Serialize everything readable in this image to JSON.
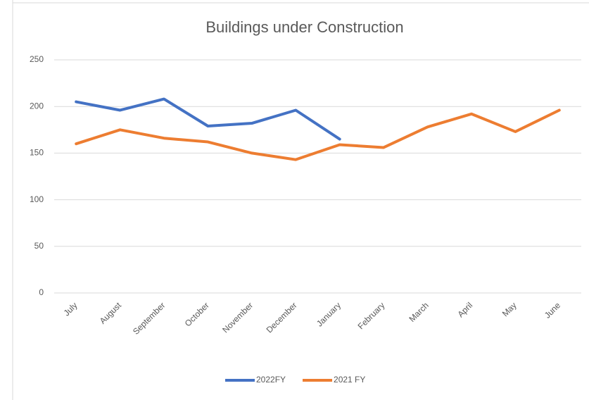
{
  "chart_data": {
    "type": "line",
    "title": "Buildings under Construction",
    "categories": [
      "July",
      "August",
      "September",
      "October",
      "November",
      "December",
      "January",
      "February",
      "March",
      "April",
      "May",
      "June"
    ],
    "series": [
      {
        "name": "2022FY",
        "color": "#4472c4",
        "values": [
          205,
          196,
          208,
          179,
          182,
          196,
          165,
          null,
          null,
          null,
          null,
          null
        ]
      },
      {
        "name": "2021 FY",
        "color": "#ed7d31",
        "values": [
          160,
          175,
          166,
          162,
          150,
          143,
          159,
          156,
          178,
          192,
          173,
          196
        ]
      }
    ],
    "ylim": [
      0,
      250
    ],
    "yticks": [
      0,
      50,
      100,
      150,
      200,
      250
    ],
    "grid": true,
    "legend": "bottom"
  }
}
